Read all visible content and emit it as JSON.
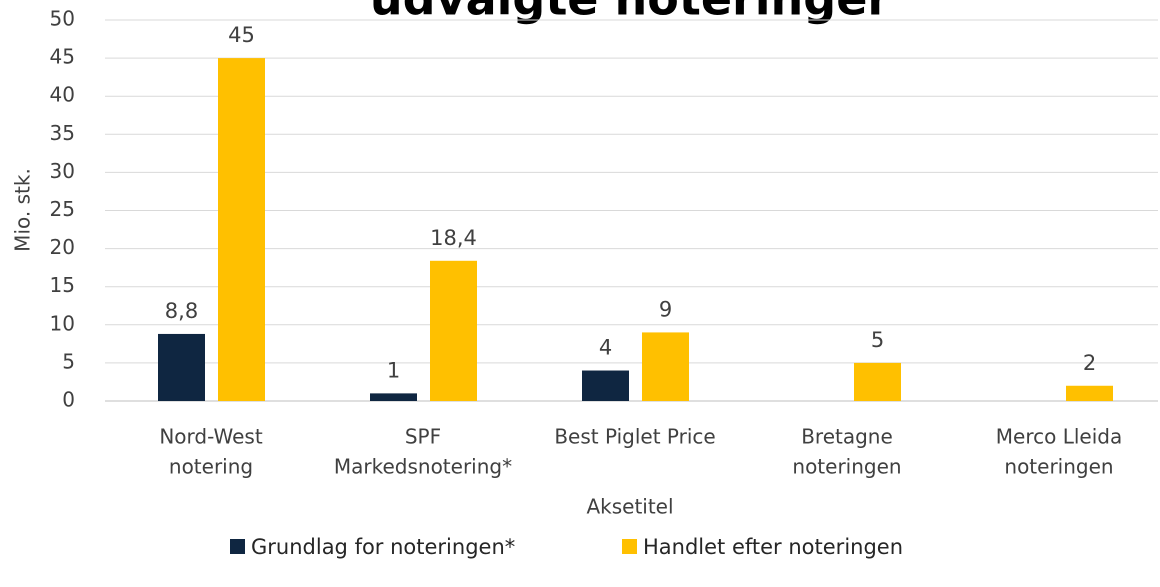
{
  "chart_data": {
    "type": "bar",
    "title": "udvalgte noteringer",
    "x_label": "Aksetitel",
    "y_label": "Mio. stk.",
    "categories": [
      [
        "Nord-West",
        "notering"
      ],
      [
        "SPF",
        "Markedsnotering*"
      ],
      [
        "Best Piglet Price"
      ],
      [
        "Bretagne",
        "noteringen"
      ],
      [
        "Merco Lleida",
        "noteringen"
      ]
    ],
    "series": [
      {
        "name": "Grundlag for noteringen*",
        "color": "#0f2641",
        "values": [
          8.8,
          1,
          4,
          null,
          null
        ],
        "value_labels": [
          "8,8",
          "1",
          "4",
          null,
          null
        ]
      },
      {
        "name": "Handlet efter noteringen",
        "color": "#ffc000",
        "values": [
          45,
          18.4,
          9,
          5,
          2
        ],
        "value_labels": [
          "45",
          "18,4",
          "9",
          "5",
          "2"
        ]
      }
    ],
    "ylim": [
      0,
      50
    ],
    "yticks": [
      0,
      5,
      10,
      15,
      20,
      25,
      30,
      35,
      40,
      45,
      50
    ],
    "grid": true,
    "legend": "bottom"
  }
}
